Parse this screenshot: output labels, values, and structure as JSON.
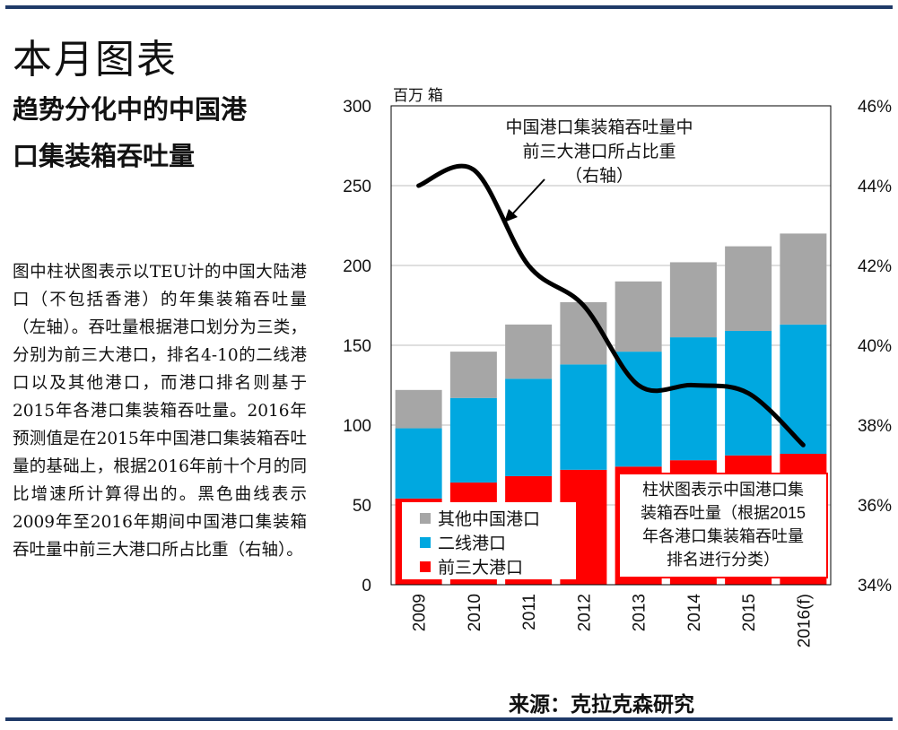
{
  "header": {
    "title": "本月图表",
    "headline_line1": "趋势分化中的中国港",
    "headline_line2": "口集装箱吞吐量"
  },
  "description": "图中柱状图表示以TEU计的中国大陆港口（不包括香港）的年集装箱吞吐量（左轴）。吞吐量根据港口划分为三类，分别为前三大港口，排名4-10的二线港口以及其他港口，而港口排名则基于2015年各港口集装箱吞吐量。2016年预测值是在2015年中国港口集装箱吞吐量的基础上，根据2016年前十个月的同比增速所计算得出的。黑色曲线表示2009年至2016年期间中国港口集装箱吞吐量中前三大港口所占比重（右轴）。",
  "source": "来源：克拉克森研究",
  "colors": {
    "rule": "#1f3a68",
    "top3": "#ff0000",
    "tier2": "#00a8e0",
    "other": "#a6a6a6",
    "line": "#000000",
    "grid": "#bfbfbf"
  },
  "chart_data": {
    "type": "bar",
    "stacked": true,
    "categories": [
      "2009",
      "2010",
      "2011",
      "2012",
      "2013",
      "2014",
      "2015",
      "2016(f)"
    ],
    "series": [
      {
        "name": "前三大港口",
        "key": "top3",
        "values": [
          54,
          64,
          68,
          72,
          74,
          78,
          81,
          82
        ]
      },
      {
        "name": "二线港口",
        "key": "tier2",
        "values": [
          44,
          53,
          61,
          66,
          72,
          77,
          78,
          81
        ]
      },
      {
        "name": "其他中国港口",
        "key": "other",
        "values": [
          24,
          29,
          34,
          39,
          44,
          47,
          53,
          57
        ]
      }
    ],
    "line_series": {
      "name": "中国港口集装箱吞吐量中前三大港口所占比重",
      "axis": "right",
      "values": [
        44.0,
        44.4,
        42.0,
        41.0,
        39.0,
        39.0,
        38.8,
        37.5
      ]
    },
    "ylabel": "百万 箱",
    "ylim": [
      0,
      300
    ],
    "yticks": [
      0,
      50,
      100,
      150,
      200,
      250,
      300
    ],
    "y2lim": [
      34,
      46
    ],
    "y2ticks": [
      "34%",
      "36%",
      "38%",
      "40%",
      "42%",
      "44%",
      "46%"
    ],
    "y2tick_values": [
      34,
      36,
      38,
      40,
      42,
      44,
      46
    ],
    "legend": [
      "其他中国港口",
      "二线港口",
      "前三大港口"
    ],
    "legend_position": "bottom-left",
    "annotations": {
      "line_label": [
        "中国港口集装箱吞吐量中",
        "前三大港口所占比重",
        "（右轴）"
      ],
      "bar_note": [
        "柱状图表示中国港口集",
        "装箱吞吐量（根据2015",
        "年各港口集装箱吞吐量",
        "排名进行分类）"
      ]
    },
    "grid": true
  }
}
